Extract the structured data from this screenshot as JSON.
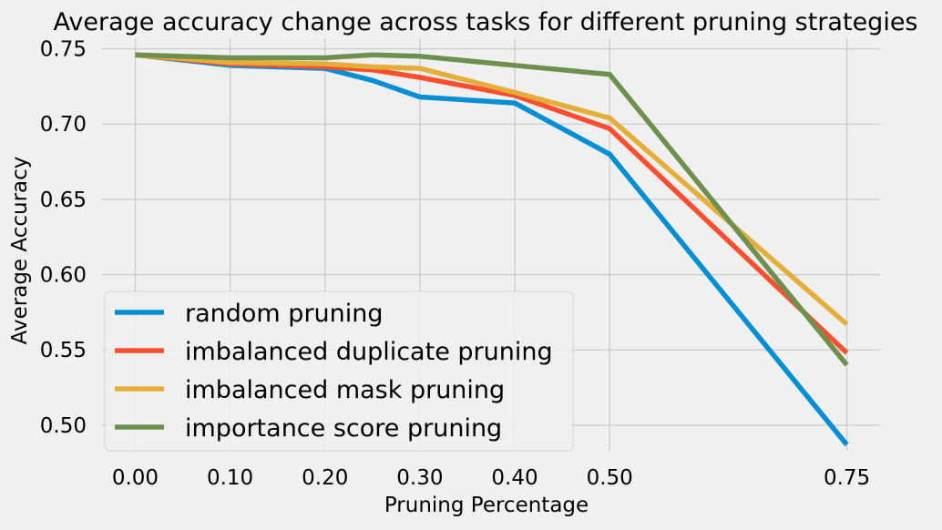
{
  "chart_data": {
    "type": "line",
    "title": "Average accuracy change across tasks for different pruning strategies",
    "xlabel": "Pruning Percentage",
    "ylabel": "Average Accuracy",
    "xlim": [
      -0.035,
      0.785
    ],
    "ylim": [
      0.483,
      0.757
    ],
    "x_ticks": [
      0.0,
      0.1,
      0.2,
      0.3,
      0.4,
      0.5,
      0.75
    ],
    "x_tick_labels": [
      "0.00",
      "0.10",
      "0.20",
      "0.30",
      "0.40",
      "0.50",
      "0.75"
    ],
    "y_ticks": [
      0.5,
      0.55,
      0.6,
      0.65,
      0.7,
      0.75
    ],
    "y_tick_labels": [
      "0.50",
      "0.55",
      "0.60",
      "0.65",
      "0.70",
      "0.75"
    ],
    "grid": true,
    "legend_position": "lower-left",
    "series": [
      {
        "name": "random pruning",
        "color": "#008fd5",
        "x": [
          0.0,
          0.1,
          0.2,
          0.25,
          0.3,
          0.4,
          0.5,
          0.75
        ],
        "y": [
          0.746,
          0.739,
          0.737,
          0.729,
          0.718,
          0.714,
          0.68,
          0.487
        ]
      },
      {
        "name": "imbalanced duplicate pruning",
        "color": "#fc4f30",
        "x": [
          0.0,
          0.1,
          0.2,
          0.25,
          0.3,
          0.4,
          0.5,
          0.75
        ],
        "y": [
          0.746,
          0.74,
          0.738,
          0.736,
          0.731,
          0.719,
          0.697,
          0.548
        ]
      },
      {
        "name": "imbalanced mask pruning",
        "color": "#e5ae38",
        "x": [
          0.0,
          0.1,
          0.2,
          0.25,
          0.3,
          0.4,
          0.5,
          0.75
        ],
        "y": [
          0.746,
          0.741,
          0.74,
          0.738,
          0.737,
          0.721,
          0.704,
          0.567
        ]
      },
      {
        "name": "importance score pruning",
        "color": "#6d904f",
        "x": [
          0.0,
          0.1,
          0.2,
          0.25,
          0.3,
          0.4,
          0.5,
          0.75
        ],
        "y": [
          0.746,
          0.744,
          0.744,
          0.746,
          0.745,
          0.739,
          0.733,
          0.54
        ]
      }
    ]
  }
}
